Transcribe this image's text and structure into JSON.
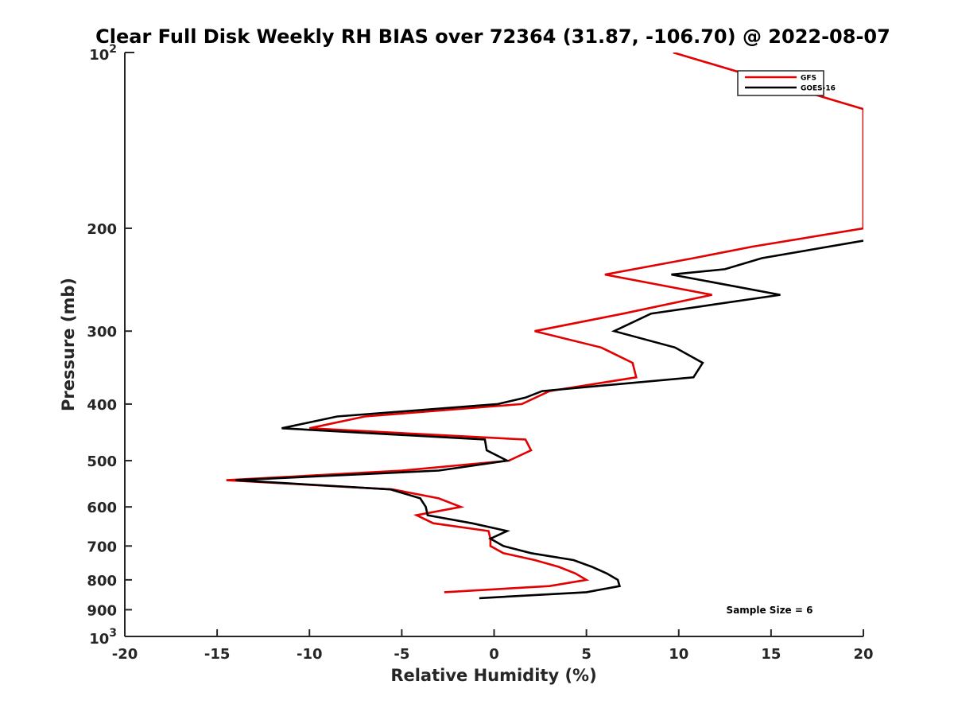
{
  "chart_data": {
    "type": "line",
    "title": "Clear Full Disk Weekly RH BIAS over 72364 (31.87, -106.70) @ 2022-08-07",
    "xlabel": "Relative Humidity (%)",
    "ylabel": "Pressure (mb)",
    "xlim": [
      -20,
      20
    ],
    "ylim": [
      100,
      1000
    ],
    "y_scale": "log",
    "y_reversed": true,
    "grid": false,
    "legend_position": "top-right",
    "x_ticks": [
      "-20",
      "-15",
      "-10",
      "-5",
      "0",
      "5",
      "10",
      "15",
      "20"
    ],
    "y_ticks": [
      "200",
      "300",
      "400",
      "500",
      "600",
      "700",
      "800",
      "900"
    ],
    "y_tick_values": [
      200,
      300,
      400,
      500,
      600,
      700,
      800,
      900
    ],
    "y_end_labels": [
      {
        "value": 100,
        "base": "10",
        "exp": "2"
      },
      {
        "value": 1000,
        "base": "10",
        "exp": "3"
      }
    ],
    "annotation": "Sample Size = 6",
    "colors": {
      "gfs": "#e30000",
      "goes": "#000000"
    },
    "series": [
      {
        "name": "GFS",
        "color": "#e30000",
        "points": [
          [
            9.7,
            100
          ],
          [
            20.0,
            125
          ],
          [
            20.0,
            200
          ],
          [
            14.0,
            215
          ],
          [
            10.8,
            225
          ],
          [
            6.0,
            240
          ],
          [
            11.8,
            260
          ],
          [
            7.0,
            280
          ],
          [
            2.2,
            300
          ],
          [
            5.8,
            320
          ],
          [
            7.5,
            340
          ],
          [
            7.7,
            360
          ],
          [
            3.0,
            380
          ],
          [
            1.5,
            400
          ],
          [
            -7.0,
            420
          ],
          [
            -10.0,
            440
          ],
          [
            1.7,
            460
          ],
          [
            2.0,
            480
          ],
          [
            0.8,
            500
          ],
          [
            -5.0,
            520
          ],
          [
            -14.5,
            540
          ],
          [
            -5.5,
            560
          ],
          [
            -3.0,
            580
          ],
          [
            -1.8,
            600
          ],
          [
            -4.2,
            620
          ],
          [
            -3.3,
            640
          ],
          [
            -0.3,
            660
          ],
          [
            -0.2,
            680
          ],
          [
            -0.2,
            700
          ],
          [
            0.5,
            720
          ],
          [
            2.2,
            740
          ],
          [
            3.5,
            760
          ],
          [
            4.4,
            780
          ],
          [
            5.0,
            800
          ],
          [
            3.0,
            820
          ],
          [
            -2.7,
            840
          ]
        ]
      },
      {
        "name": "GOES-16",
        "color": "#000000",
        "points": [
          [
            20.0,
            210
          ],
          [
            14.5,
            225
          ],
          [
            12.5,
            235
          ],
          [
            9.6,
            240
          ],
          [
            15.5,
            260
          ],
          [
            8.5,
            280
          ],
          [
            6.5,
            300
          ],
          [
            9.8,
            320
          ],
          [
            11.3,
            340
          ],
          [
            10.8,
            360
          ],
          [
            2.6,
            380
          ],
          [
            1.7,
            390
          ],
          [
            0.2,
            400
          ],
          [
            -8.5,
            420
          ],
          [
            -11.5,
            440
          ],
          [
            -0.5,
            460
          ],
          [
            -0.4,
            480
          ],
          [
            0.7,
            500
          ],
          [
            -3.0,
            520
          ],
          [
            -14.0,
            540
          ],
          [
            -5.6,
            560
          ],
          [
            -4.0,
            580
          ],
          [
            -3.7,
            600
          ],
          [
            -3.6,
            620
          ],
          [
            -1.2,
            640
          ],
          [
            0.7,
            660
          ],
          [
            -0.2,
            680
          ],
          [
            0.5,
            700
          ],
          [
            2.0,
            720
          ],
          [
            4.3,
            740
          ],
          [
            5.3,
            760
          ],
          [
            6.1,
            780
          ],
          [
            6.7,
            800
          ],
          [
            6.8,
            820
          ],
          [
            5.0,
            840
          ],
          [
            -0.8,
            860
          ]
        ]
      }
    ]
  }
}
